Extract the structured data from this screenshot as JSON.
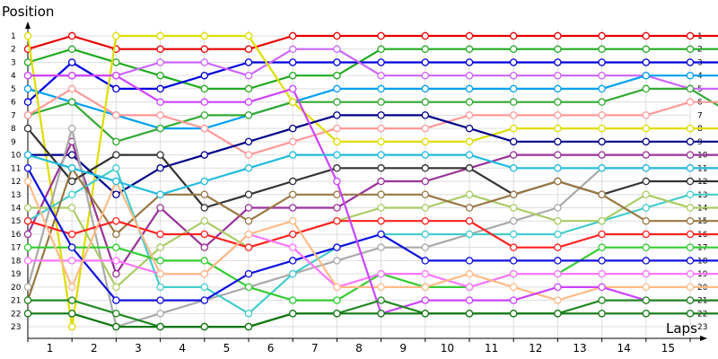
{
  "chart_data": {
    "type": "line",
    "title": "",
    "ylabel": "Position",
    "xlabel": "Laps",
    "x": [
      0,
      1,
      2,
      3,
      4,
      5,
      6,
      7,
      8,
      9,
      10,
      11,
      12,
      13,
      14,
      15,
      16
    ],
    "xticks": [
      "1",
      "2",
      "3",
      "4",
      "5",
      "6",
      "7",
      "8",
      "9",
      "10",
      "11",
      "12",
      "13",
      "14",
      "15"
    ],
    "yticks": [
      "1",
      "2",
      "3",
      "4",
      "5",
      "6",
      "7",
      "8",
      "9",
      "10",
      "11",
      "12",
      "13",
      "14",
      "15",
      "16",
      "17",
      "18",
      "19",
      "20",
      "21",
      "22",
      "23"
    ],
    "ylim": [
      1,
      23
    ],
    "inverted_y": true,
    "grid": true,
    "series": [
      {
        "color": "#e60000",
        "values": [
          2,
          1,
          2,
          2,
          2,
          2,
          1,
          1,
          1,
          1,
          1,
          1,
          1,
          1,
          1,
          1,
          1
        ]
      },
      {
        "color": "#22aa22",
        "values": [
          3,
          2,
          3,
          4,
          5,
          5,
          4,
          4,
          2,
          2,
          2,
          2,
          2,
          2,
          2,
          2,
          2
        ]
      },
      {
        "color": "#0000dd",
        "values": [
          6,
          3,
          5,
          5,
          4,
          3,
          3,
          3,
          3,
          3,
          3,
          3,
          3,
          3,
          3,
          3,
          3
        ]
      },
      {
        "color": "#cc66ff",
        "values": [
          4,
          4,
          4,
          3,
          3,
          4,
          2,
          2,
          4,
          4,
          4,
          4,
          4,
          4,
          4,
          5,
          5
        ]
      },
      {
        "color": "#00a0ee",
        "values": [
          5,
          6,
          7,
          8,
          8,
          7,
          6,
          5,
          5,
          5,
          5,
          5,
          5,
          5,
          4,
          4,
          4
        ]
      },
      {
        "color": "#33aa33",
        "values": [
          7,
          6,
          9,
          8,
          7,
          7,
          6,
          6,
          6,
          6,
          6,
          6,
          6,
          6,
          5,
          5,
          7
        ]
      },
      {
        "color": "#ff9999",
        "values": [
          7,
          5,
          7,
          7,
          8,
          10,
          9,
          8,
          8,
          8,
          7,
          7,
          7,
          7,
          7,
          6,
          6
        ]
      },
      {
        "color": "#dddd00",
        "values": [
          1,
          23,
          1,
          1,
          1,
          1,
          6,
          9,
          9,
          9,
          9,
          8,
          8,
          8,
          8,
          8,
          8
        ]
      },
      {
        "color": "#000088",
        "values": [
          10,
          10,
          13,
          11,
          10,
          9,
          8,
          7,
          7,
          7,
          8,
          9,
          9,
          9,
          9,
          9,
          9
        ]
      },
      {
        "color": "#993399",
        "values": [
          16,
          9,
          19,
          14,
          17,
          14,
          14,
          14,
          12,
          12,
          11,
          10,
          10,
          10,
          10,
          10,
          10
        ]
      },
      {
        "color": "#aaaaaa",
        "values": [
          20,
          8,
          23,
          22,
          21,
          20,
          19,
          18,
          17,
          17,
          16,
          15,
          14,
          11,
          11,
          11,
          11
        ]
      },
      {
        "color": "#333333",
        "values": [
          8,
          12,
          10,
          10,
          14,
          13,
          12,
          11,
          11,
          11,
          11,
          13,
          12,
          13,
          12,
          12,
          12
        ]
      },
      {
        "color": "#44cccc",
        "values": [
          15,
          13,
          11,
          20,
          20,
          22,
          19,
          17,
          16,
          16,
          16,
          16,
          16,
          15,
          14,
          13,
          13
        ]
      },
      {
        "color": "#aacc66",
        "values": [
          14,
          14,
          20,
          17,
          15,
          17,
          16,
          15,
          14,
          14,
          13,
          14,
          15,
          15,
          13,
          14,
          14
        ]
      },
      {
        "color": "#997744",
        "values": [
          21,
          11,
          16,
          13,
          13,
          15,
          13,
          13,
          13,
          13,
          14,
          13,
          12,
          13,
          15,
          15,
          15
        ]
      },
      {
        "color": "#ff2222",
        "values": [
          15,
          16,
          15,
          16,
          16,
          17,
          16,
          15,
          15,
          15,
          15,
          17,
          17,
          16,
          16,
          16,
          16
        ]
      },
      {
        "color": "#33cc33",
        "values": [
          17,
          17,
          17,
          18,
          18,
          20,
          21,
          21,
          19,
          20,
          20,
          19,
          19,
          17,
          17,
          17,
          17
        ]
      },
      {
        "color": "#1111dd",
        "values": [
          11,
          17,
          21,
          21,
          21,
          19,
          18,
          17,
          16,
          18,
          18,
          18,
          18,
          18,
          18,
          18,
          18
        ]
      },
      {
        "color": "#ff77ff",
        "values": [
          18,
          18,
          18,
          19,
          19,
          16,
          17,
          20,
          19,
          19,
          20,
          19,
          19,
          19,
          19,
          19,
          19
        ]
      },
      {
        "color": "#ffbb88",
        "values": [
          12,
          20,
          12,
          19,
          19,
          16,
          15,
          20,
          20,
          20,
          19,
          20,
          21,
          20,
          20,
          20,
          20
        ]
      },
      {
        "color": "#cc44ff",
        "values": [
          4,
          4,
          4,
          6,
          6,
          6,
          5,
          12,
          22,
          21,
          21,
          21,
          20,
          20,
          21,
          21,
          21
        ]
      },
      {
        "color": "#228822",
        "values": [
          21,
          21,
          22,
          23,
          23,
          23,
          22,
          22,
          21,
          22,
          22,
          22,
          22,
          21,
          21,
          21,
          21
        ]
      },
      {
        "color": "#117711",
        "values": [
          22,
          22,
          23,
          23,
          23,
          23,
          22,
          22,
          22,
          22,
          22,
          22,
          22,
          22,
          22,
          22,
          22
        ]
      },
      {
        "color": "#22bbdd",
        "values": [
          10,
          11,
          12,
          13,
          12,
          11,
          10,
          10,
          10,
          10,
          10,
          11,
          11,
          11,
          11,
          11,
          11
        ]
      }
    ]
  }
}
